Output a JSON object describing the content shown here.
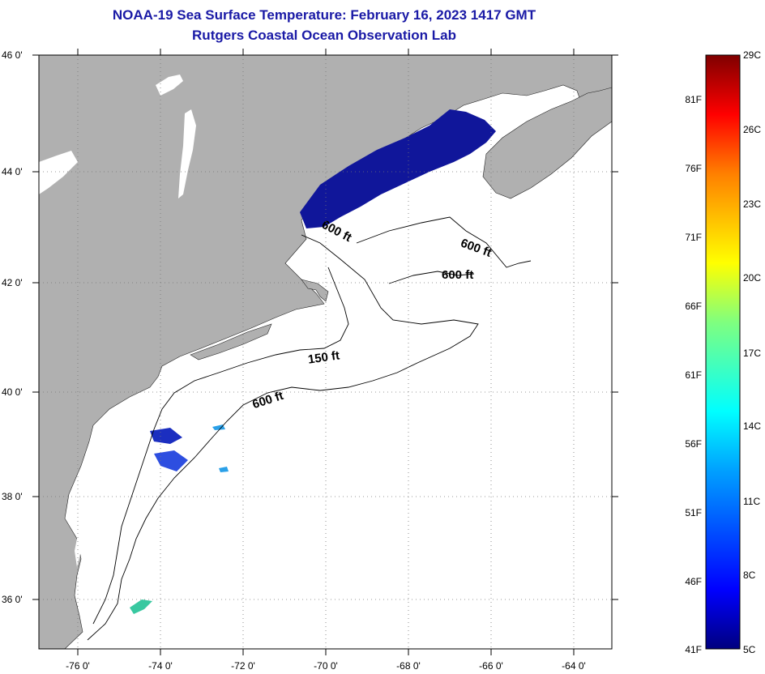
{
  "title": "NOAA-19 Sea Surface Temperature:  February 16, 2023 1417 GMT",
  "subtitle": "Rutgers Coastal Ocean Observation Lab",
  "axes": {
    "lat_labels": [
      "46 0'",
      "44 0'",
      "42 0'",
      "40 0'",
      "38 0'",
      "36 0'"
    ],
    "lon_labels": [
      "-76 0'",
      "-74 0'",
      "-72 0'",
      "-70 0'",
      "-68 0'",
      "-66 0'",
      "-64 0'"
    ]
  },
  "contour_labels": {
    "a": "600 ft",
    "b": "600 ft",
    "c": "600 ft",
    "d": "150 ft",
    "e": "600 ft"
  },
  "colorbar": {
    "fahrenheit": [
      "81F",
      "76F",
      "71F",
      "66F",
      "61F",
      "56F",
      "51F",
      "46F",
      "41F"
    ],
    "celsius": [
      "29C",
      "26C",
      "23C",
      "20C",
      "17C",
      "14C",
      "11C",
      "8C",
      "5C"
    ]
  },
  "colors": {
    "land": "#b0b0b0",
    "ocean": "#ffffff",
    "cold_sst": "#10169a",
    "title": "#1a1aa6"
  }
}
